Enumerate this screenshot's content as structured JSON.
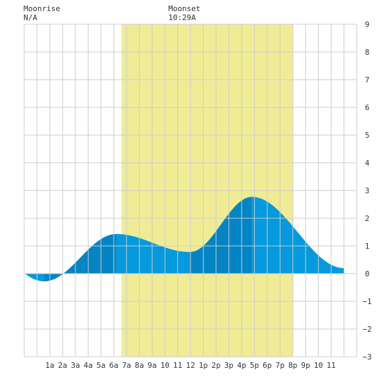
{
  "header": {
    "moonrise_label": "Moonrise",
    "moonrise_value": "N/A",
    "moonset_label": "Moonset",
    "moonset_value": "10:29A"
  },
  "colors": {
    "daylight": "#f0ec96",
    "tide_light": "#0599dd",
    "tide_dark": "#0484c2",
    "grid": "#cccccc",
    "background": "#ffffff"
  },
  "chart_data": {
    "type": "area",
    "title": "",
    "xlabel": "",
    "ylabel": "",
    "x_unit": "hour",
    "xlim": [
      -1,
      25
    ],
    "ylim": [
      -3,
      9
    ],
    "x_ticks": [
      {
        "x": 1,
        "label": "1a"
      },
      {
        "x": 2,
        "label": "2a"
      },
      {
        "x": 3,
        "label": "3a"
      },
      {
        "x": 4,
        "label": "4a"
      },
      {
        "x": 5,
        "label": "5a"
      },
      {
        "x": 6,
        "label": "6a"
      },
      {
        "x": 7,
        "label": "7a"
      },
      {
        "x": 8,
        "label": "8a"
      },
      {
        "x": 9,
        "label": "9a"
      },
      {
        "x": 10,
        "label": "10"
      },
      {
        "x": 11,
        "label": "11"
      },
      {
        "x": 12,
        "label": "12"
      },
      {
        "x": 13,
        "label": "1p"
      },
      {
        "x": 14,
        "label": "2p"
      },
      {
        "x": 15,
        "label": "3p"
      },
      {
        "x": 16,
        "label": "4p"
      },
      {
        "x": 17,
        "label": "5p"
      },
      {
        "x": 18,
        "label": "6p"
      },
      {
        "x": 19,
        "label": "7p"
      },
      {
        "x": 20,
        "label": "8p"
      },
      {
        "x": 21,
        "label": "9p"
      },
      {
        "x": 22,
        "label": "10"
      },
      {
        "x": 23,
        "label": "11"
      }
    ],
    "y_ticks": [
      -3,
      -2,
      -1,
      0,
      1,
      2,
      3,
      4,
      5,
      6,
      7,
      8,
      9
    ],
    "y_tick_labels": [
      "−3",
      "−2",
      "−1",
      "0",
      "1",
      "2",
      "3",
      "4",
      "5",
      "6",
      "7",
      "8",
      "9"
    ],
    "daylight": {
      "start": 6.6,
      "end": 20.0
    },
    "tide_events": [
      {
        "x": 0.55,
        "y": -0.28,
        "kind": "low"
      },
      {
        "x": 6.2,
        "y": 1.43,
        "kind": "high"
      },
      {
        "x": 11.95,
        "y": 0.78,
        "kind": "low"
      },
      {
        "x": 16.8,
        "y": 2.77,
        "kind": "high"
      }
    ],
    "tide_end": {
      "x": 24.0,
      "y": 0.2
    },
    "shading_bands": [
      {
        "start": 0.55,
        "end": 6.2,
        "tone": "dark"
      },
      {
        "start": 6.2,
        "end": 11.95,
        "tone": "light"
      },
      {
        "start": 11.95,
        "end": 16.8,
        "tone": "dark"
      },
      {
        "start": 16.8,
        "end": 24.0,
        "tone": "light"
      }
    ],
    "grid": true,
    "legend": "none"
  }
}
